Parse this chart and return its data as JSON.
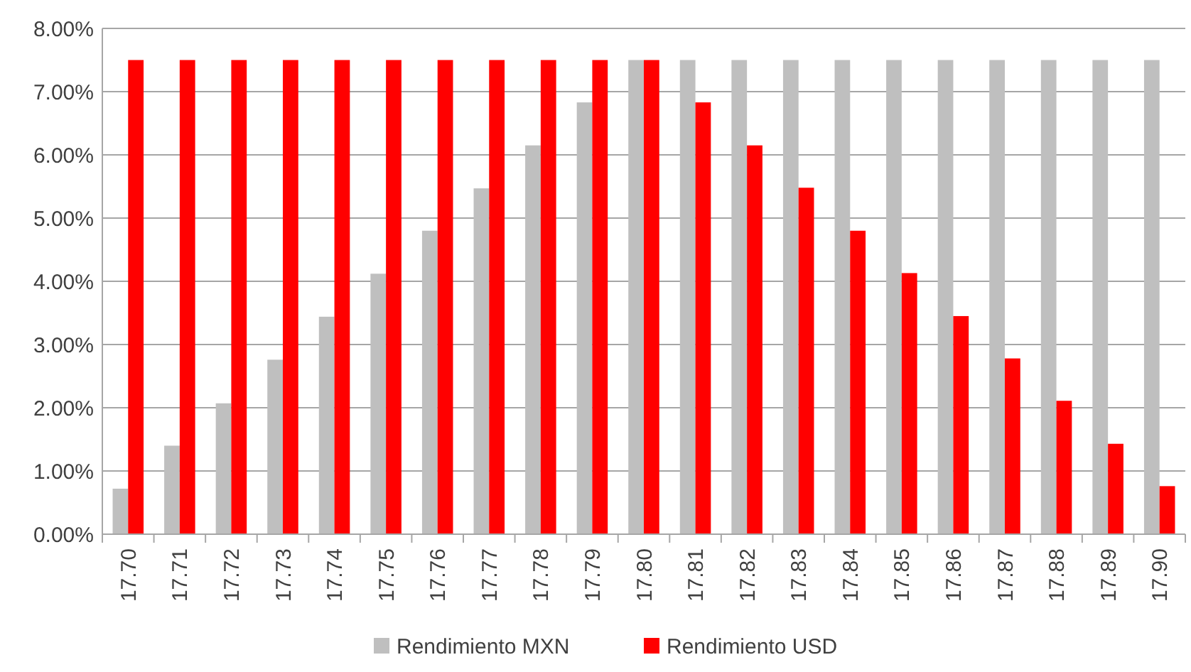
{
  "chart_data": {
    "type": "bar",
    "categories": [
      "17.70",
      "17.71",
      "17.72",
      "17.73",
      "17.74",
      "17.75",
      "17.76",
      "17.77",
      "17.78",
      "17.79",
      "17.80",
      "17.81",
      "17.82",
      "17.83",
      "17.84",
      "17.85",
      "17.86",
      "17.87",
      "17.88",
      "17.89",
      "17.90"
    ],
    "series": [
      {
        "name": "Rendimiento MXN",
        "color": "#bfbfbf",
        "values": [
          0.72,
          1.4,
          2.07,
          2.76,
          3.44,
          4.12,
          4.8,
          5.47,
          6.15,
          6.83,
          7.5,
          7.5,
          7.5,
          7.5,
          7.5,
          7.5,
          7.5,
          7.5,
          7.5,
          7.5,
          7.5
        ]
      },
      {
        "name": "Rendimiento USD",
        "color": "#ff0000",
        "values": [
          7.5,
          7.5,
          7.5,
          7.5,
          7.5,
          7.5,
          7.5,
          7.5,
          7.5,
          7.5,
          7.5,
          6.83,
          6.15,
          5.48,
          4.8,
          4.13,
          3.45,
          2.78,
          2.11,
          1.43,
          0.76
        ]
      }
    ],
    "ylim": [
      0,
      8
    ],
    "yticks": [
      {
        "value": 0,
        "label": "0.00%"
      },
      {
        "value": 1,
        "label": "1.00%"
      },
      {
        "value": 2,
        "label": "2.00%"
      },
      {
        "value": 3,
        "label": "3.00%"
      },
      {
        "value": 4,
        "label": "4.00%"
      },
      {
        "value": 5,
        "label": "5.00%"
      },
      {
        "value": 6,
        "label": "6.00%"
      },
      {
        "value": 7,
        "label": "7.00%"
      },
      {
        "value": 8,
        "label": "8.00%"
      }
    ],
    "grid": "y",
    "legend": "bottom"
  }
}
